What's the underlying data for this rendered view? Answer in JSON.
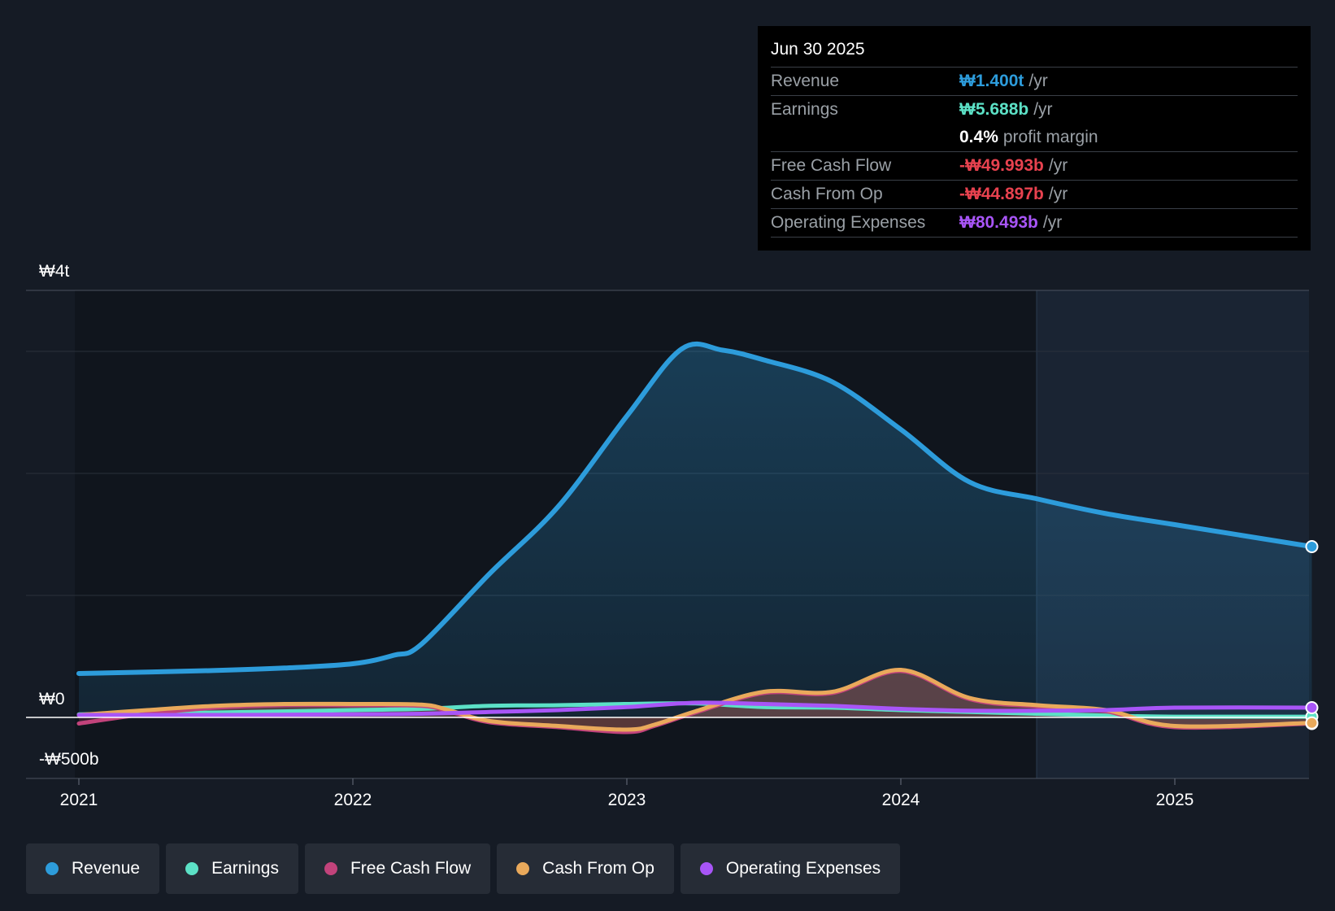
{
  "tooltip": {
    "date": "Jun 30 2025",
    "rows": [
      {
        "label": "Revenue",
        "value": "₩1.400t",
        "unit": "/yr",
        "color": "#2d9cdb"
      },
      {
        "label": "Earnings",
        "value": "₩5.688b",
        "unit": "/yr",
        "color": "#5ce1c6"
      },
      {
        "label": "",
        "value": "0.4%",
        "unit": "profit margin",
        "color": "#ffffff"
      },
      {
        "label": "Free Cash Flow",
        "value": "-₩49.993b",
        "unit": "/yr",
        "color": "#e8424f"
      },
      {
        "label": "Cash From Op",
        "value": "-₩44.897b",
        "unit": "/yr",
        "color": "#e8424f"
      },
      {
        "label": "Operating Expenses",
        "value": "₩80.493b",
        "unit": "/yr",
        "color": "#a855f7"
      }
    ]
  },
  "legend": [
    {
      "label": "Revenue",
      "color": "#2d9cdb"
    },
    {
      "label": "Earnings",
      "color": "#5ce1c6"
    },
    {
      "label": "Free Cash Flow",
      "color": "#c2437b"
    },
    {
      "label": "Cash From Op",
      "color": "#e9a95b"
    },
    {
      "label": "Operating Expenses",
      "color": "#a855f7"
    }
  ],
  "chart_data": {
    "type": "line",
    "y_tick_labels": [
      "₩4t",
      "₩0",
      "-₩500b"
    ],
    "x_tick_labels": [
      "2021",
      "2022",
      "2023",
      "2024",
      "2025"
    ],
    "ylim": [
      -500,
      3500
    ],
    "xlim": [
      2021.0,
      2025.5
    ],
    "unit": "₩b",
    "past_data_from": 2024.5,
    "series": [
      {
        "name": "Revenue",
        "color": "#2d9cdb",
        "fill": true,
        "x": [
          2021.0,
          2021.5,
          2021.75,
          2022.0,
          2022.15,
          2022.25,
          2022.5,
          2022.75,
          2023.0,
          2023.2,
          2023.35,
          2023.5,
          2023.75,
          2024.0,
          2024.25,
          2024.5,
          2024.75,
          2025.0,
          2025.5
        ],
        "y": [
          360,
          385,
          405,
          440,
          510,
          600,
          1180,
          1730,
          2470,
          3020,
          3010,
          2930,
          2750,
          2360,
          1930,
          1790,
          1670,
          1580,
          1400
        ]
      },
      {
        "name": "Earnings",
        "color": "#5ce1c6",
        "fill": false,
        "x": [
          2021.0,
          2021.5,
          2022.0,
          2022.25,
          2022.5,
          2022.75,
          2023.0,
          2023.25,
          2023.5,
          2023.75,
          2024.0,
          2024.25,
          2024.5,
          2024.75,
          2025.0,
          2025.5
        ],
        "y": [
          25,
          40,
          60,
          70,
          95,
          100,
          110,
          115,
          85,
          80,
          60,
          45,
          30,
          15,
          6,
          6
        ]
      },
      {
        "name": "Free Cash Flow",
        "color": "#c2437b",
        "fill": true,
        "x": [
          2021.0,
          2021.25,
          2021.5,
          2021.75,
          2022.0,
          2022.25,
          2022.35,
          2022.5,
          2022.75,
          2023.0,
          2023.1,
          2023.25,
          2023.5,
          2023.75,
          2024.0,
          2024.25,
          2024.5,
          2024.75,
          2025.0,
          2025.5
        ],
        "y": [
          -50,
          30,
          80,
          100,
          100,
          95,
          50,
          -40,
          -80,
          -120,
          -70,
          40,
          200,
          200,
          380,
          150,
          90,
          50,
          -80,
          -50
        ]
      },
      {
        "name": "Cash From Op",
        "color": "#e9a95b",
        "fill": true,
        "x": [
          2021.0,
          2021.25,
          2021.5,
          2021.75,
          2022.0,
          2022.25,
          2022.35,
          2022.5,
          2022.75,
          2023.0,
          2023.1,
          2023.25,
          2023.5,
          2023.75,
          2024.0,
          2024.25,
          2024.5,
          2024.75,
          2025.0,
          2025.5
        ],
        "y": [
          20,
          60,
          95,
          110,
          110,
          105,
          60,
          -30,
          -70,
          -100,
          -60,
          50,
          210,
          210,
          390,
          160,
          100,
          60,
          -70,
          -45
        ]
      },
      {
        "name": "Operating Expenses",
        "color": "#a855f7",
        "fill": false,
        "x": [
          2021.0,
          2021.5,
          2022.0,
          2022.25,
          2022.5,
          2022.75,
          2023.0,
          2023.25,
          2023.5,
          2023.75,
          2024.0,
          2024.25,
          2024.5,
          2024.75,
          2025.0,
          2025.5
        ],
        "y": [
          20,
          20,
          25,
          30,
          45,
          60,
          85,
          120,
          110,
          95,
          70,
          55,
          55,
          60,
          80,
          80
        ]
      }
    ]
  }
}
